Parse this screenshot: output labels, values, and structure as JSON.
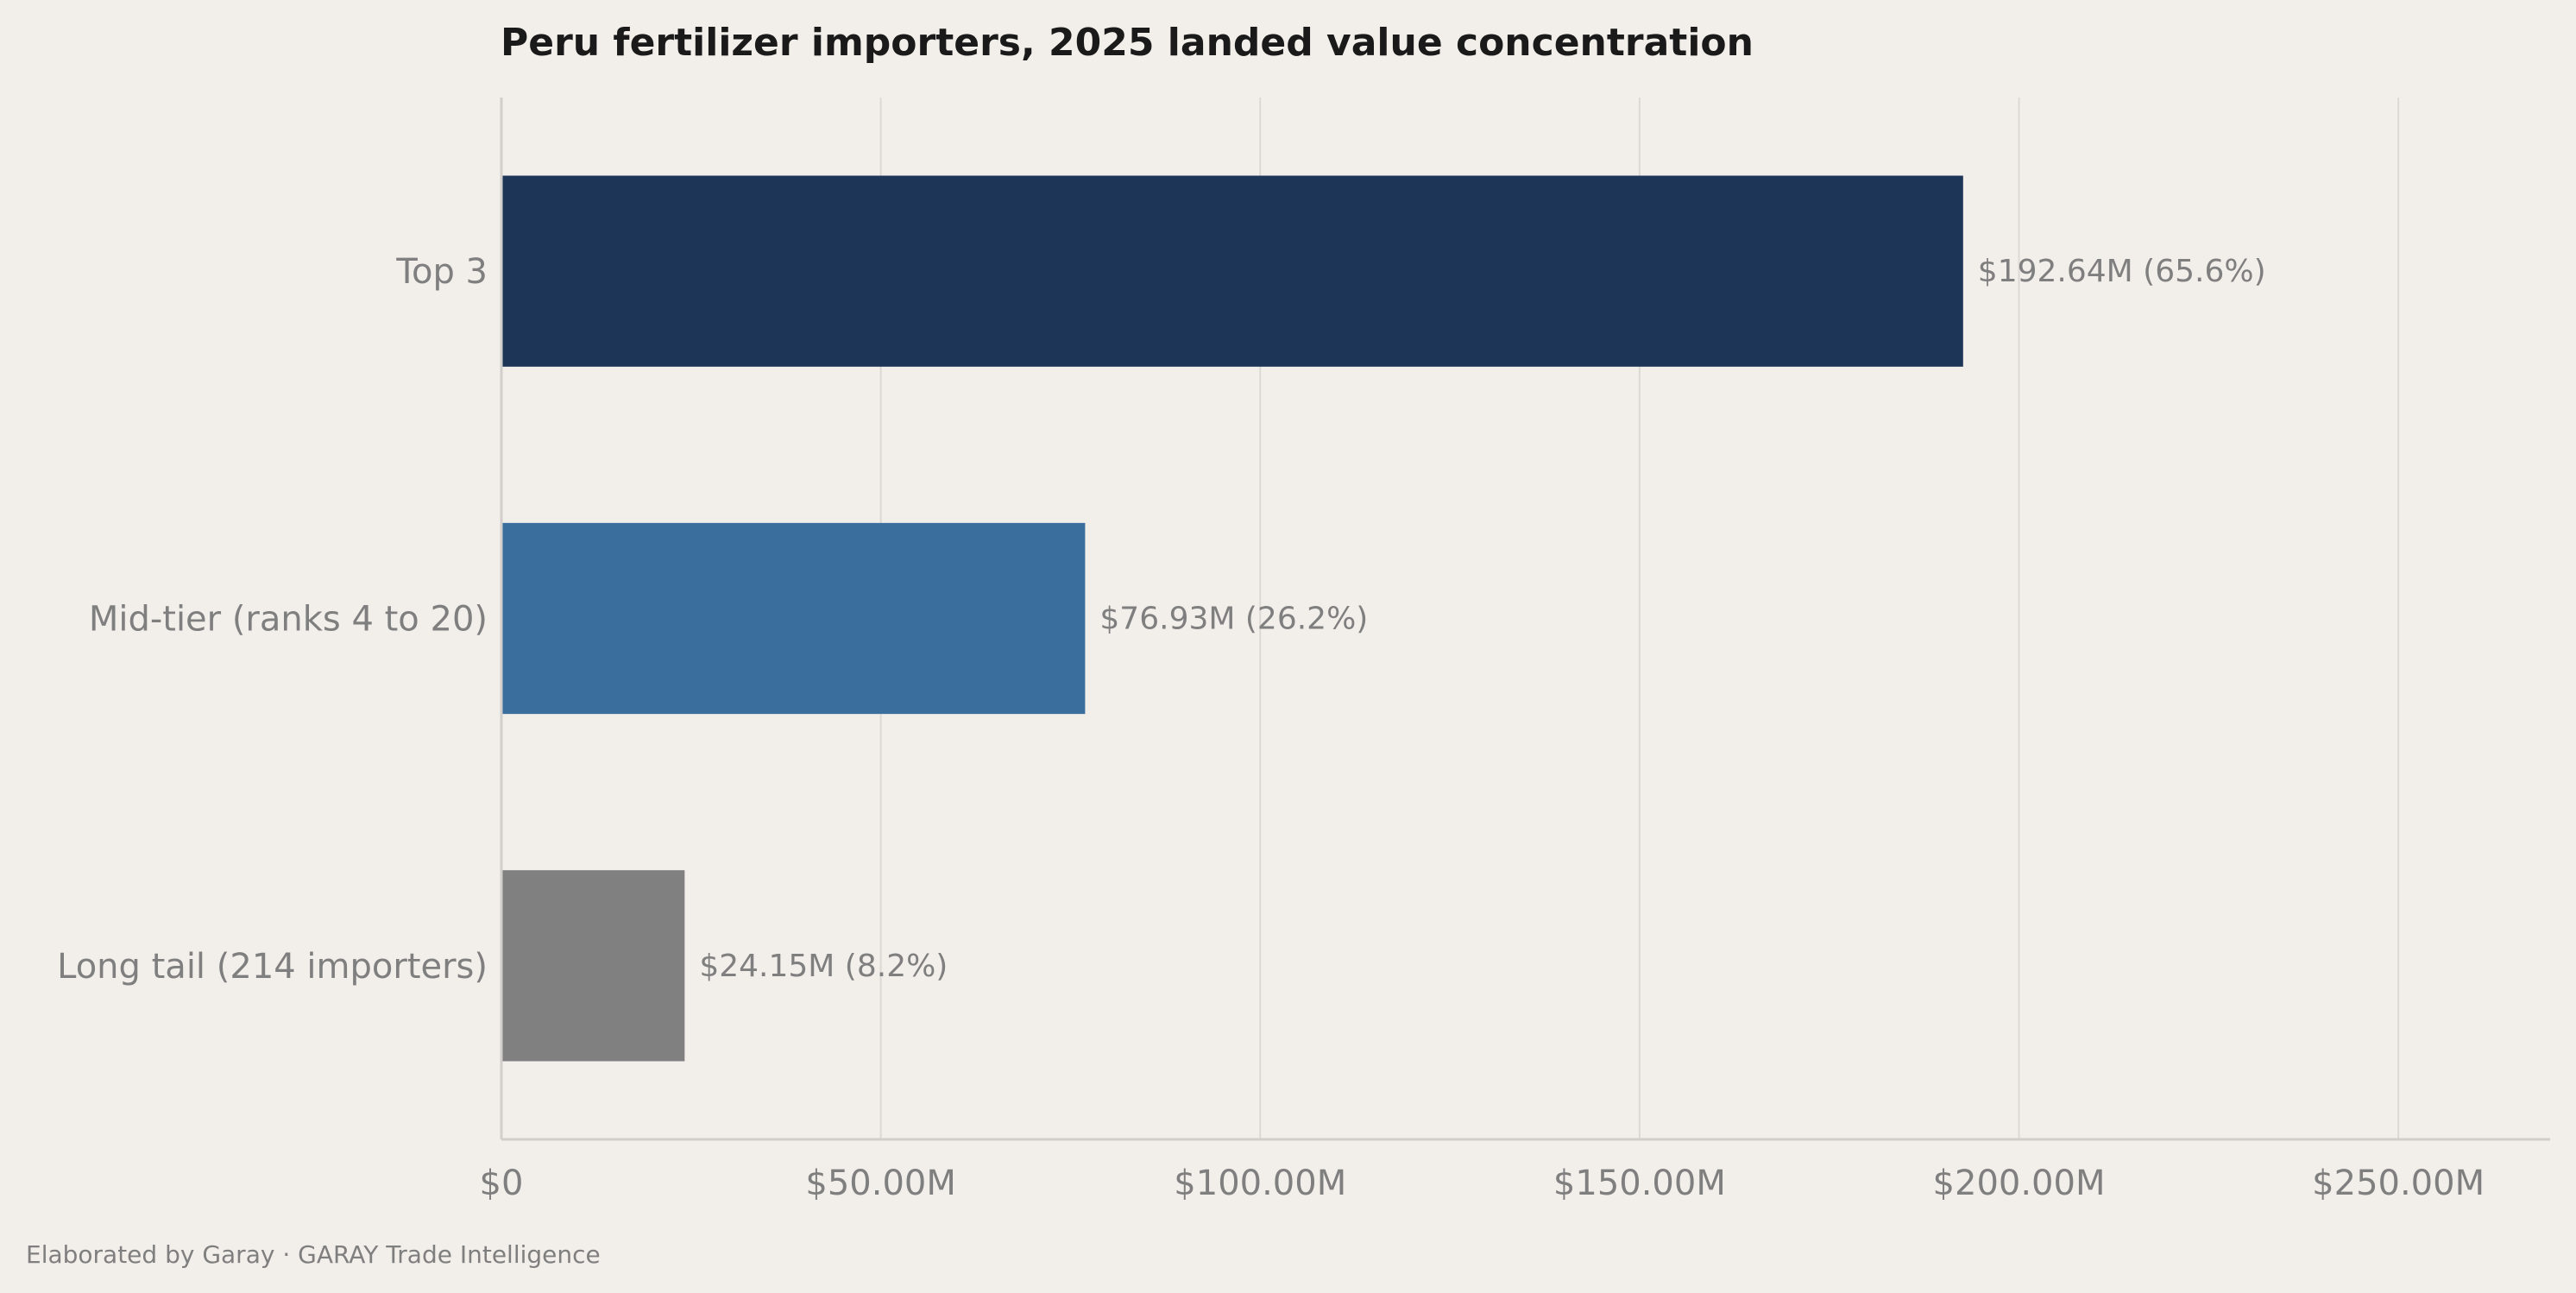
{
  "chart_data": {
    "type": "bar",
    "orientation": "horizontal",
    "title": "Peru fertilizer importers, 2025 landed value concentration",
    "categories": [
      "Top 3",
      "Mid-tier (ranks 4 to 20)",
      "Long tail (214 importers)"
    ],
    "values": [
      192.64,
      76.93,
      24.15
    ],
    "value_unit": "$M",
    "data_labels": [
      "$192.64M  (65.6%)",
      "$76.93M  (26.2%)",
      "$24.15M  (8.2%)"
    ],
    "colors": [
      "#1d3557",
      "#3a6e9c",
      "#808080"
    ],
    "xlim": [
      0,
      270
    ],
    "x_ticks": [
      0,
      50,
      100,
      150,
      200,
      250
    ],
    "x_tick_labels": [
      "$0",
      "$50.00M",
      "$100.00M",
      "$150.00M",
      "$200.00M",
      "$250.00M"
    ],
    "xlabel": "",
    "ylabel": "",
    "grid": "vertical",
    "legend": "none"
  },
  "footer": {
    "text": "Elaborated by Garay  ·  GARAY Trade Intelligence"
  }
}
